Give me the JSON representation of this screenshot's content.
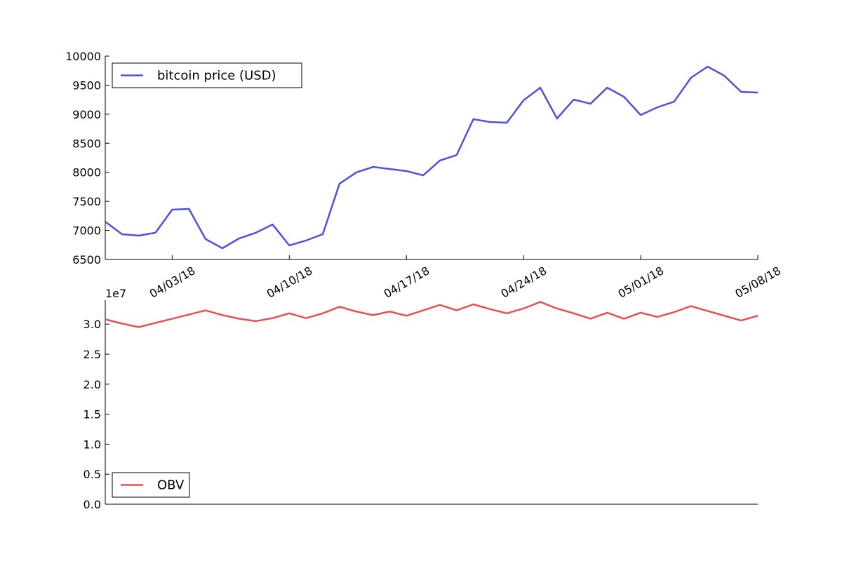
{
  "chart_data": [
    {
      "type": "line",
      "legend": "upper left",
      "x": [
        "03/30/18",
        "03/31/18",
        "04/01/18",
        "04/02/18",
        "04/03/18",
        "04/04/18",
        "04/05/18",
        "04/06/18",
        "04/07/18",
        "04/08/18",
        "04/09/18",
        "04/10/18",
        "04/11/18",
        "04/12/18",
        "04/13/18",
        "04/14/18",
        "04/15/18",
        "04/16/18",
        "04/17/18",
        "04/18/18",
        "04/19/18",
        "04/20/18",
        "04/21/18",
        "04/22/18",
        "04/23/18",
        "04/24/18",
        "04/25/18",
        "04/26/18",
        "04/27/18",
        "04/28/18",
        "04/29/18",
        "04/30/18",
        "05/01/18",
        "05/02/18",
        "05/03/18",
        "05/04/18",
        "05/05/18",
        "05/06/18",
        "05/07/18",
        "05/08/18"
      ],
      "xlim": [
        "03/30/18",
        "05/08/18"
      ],
      "xticks": [
        "04/03/18",
        "04/10/18",
        "04/17/18",
        "04/24/18",
        "05/01/18",
        "05/08/18"
      ],
      "ylim": [
        6500,
        10000
      ],
      "yticks": [
        6500,
        7000,
        7500,
        8000,
        8500,
        9000,
        9500,
        10000
      ],
      "series": [
        {
          "name": "bitcoin price (USD)",
          "color": "#5050e0",
          "values": [
            7150,
            6935,
            6910,
            6960,
            7357,
            7370,
            6850,
            6693,
            6862,
            6960,
            7103,
            6741,
            6826,
            6935,
            7804,
            7997,
            8093,
            8057,
            8021,
            7948,
            8202,
            8298,
            8914,
            8866,
            8854,
            9240,
            9457,
            8926,
            9252,
            9180,
            9457,
            9300,
            8986,
            9119,
            9216,
            9626,
            9819,
            9662,
            9385,
            9373
          ]
        }
      ]
    },
    {
      "type": "line",
      "legend": "lower left",
      "x": [
        "03/30/18",
        "03/31/18",
        "04/01/18",
        "04/02/18",
        "04/03/18",
        "04/04/18",
        "04/05/18",
        "04/06/18",
        "04/07/18",
        "04/08/18",
        "04/09/18",
        "04/10/18",
        "04/11/18",
        "04/12/18",
        "04/13/18",
        "04/14/18",
        "04/15/18",
        "04/16/18",
        "04/17/18",
        "04/18/18",
        "04/19/18",
        "04/20/18",
        "04/21/18",
        "04/22/18",
        "04/23/18",
        "04/24/18",
        "04/25/18",
        "04/26/18",
        "04/27/18",
        "04/28/18",
        "04/29/18",
        "04/30/18",
        "05/01/18",
        "05/02/18",
        "05/03/18",
        "05/04/18",
        "05/05/18",
        "05/06/18",
        "05/07/18",
        "05/08/18"
      ],
      "xlim": [
        "03/30/18",
        "05/08/18"
      ],
      "ylim": [
        0,
        34000000
      ],
      "yticks": [
        {
          "value": 0,
          "label": "0.0"
        },
        {
          "value": 5000000,
          "label": "0.5"
        },
        {
          "value": 10000000,
          "label": "1.0"
        },
        {
          "value": 15000000,
          "label": "1.5"
        },
        {
          "value": 20000000,
          "label": "2.0"
        },
        {
          "value": 25000000,
          "label": "2.5"
        },
        {
          "value": 30000000,
          "label": "3.0"
        }
      ],
      "y_offset_label": "1e7",
      "series": [
        {
          "name": "OBV",
          "color": "#e85050",
          "values": [
            30800000,
            30100000,
            29500000,
            30200000,
            30900000,
            31600000,
            32300000,
            31500000,
            30900000,
            30500000,
            31000000,
            31800000,
            31000000,
            31800000,
            32900000,
            32100000,
            31500000,
            32100000,
            31400000,
            32300000,
            33200000,
            32300000,
            33300000,
            32500000,
            31800000,
            32600000,
            33700000,
            32600000,
            31800000,
            30900000,
            31900000,
            30900000,
            31900000,
            31200000,
            32000000,
            33000000,
            32200000,
            31400000,
            30600000,
            31400000
          ]
        }
      ]
    }
  ]
}
